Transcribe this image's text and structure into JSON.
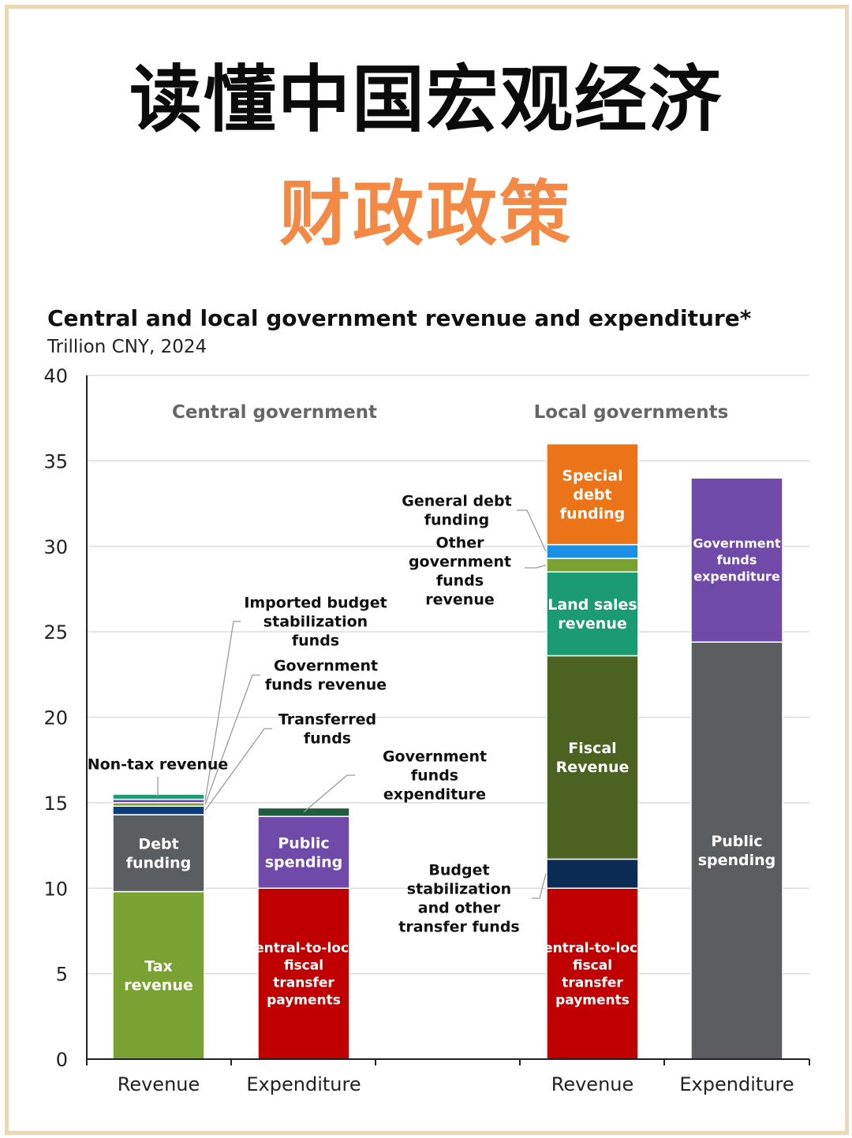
{
  "header": {
    "title": "读懂中国宏观经济",
    "subtitle": "财政政策"
  },
  "colors": {
    "frame": "#ead9b6",
    "title": "#0b0b0b",
    "subtitle": "#f28a45"
  },
  "chart_data": {
    "type": "bar",
    "stacked": true,
    "title": "Central and local government revenue and expenditure*",
    "subtitle": "Trillion CNY, 2024",
    "ylim": [
      0,
      40
    ],
    "yticks": [
      "0",
      "5",
      "10",
      "15",
      "20",
      "25",
      "30",
      "35",
      "40"
    ],
    "grid": true,
    "groups": [
      "Central government",
      "Local governments"
    ],
    "categories": [
      "Revenue",
      "Expenditure",
      "Revenue",
      "Expenditure"
    ],
    "bars": [
      {
        "group": "Central government",
        "category": "Revenue",
        "segments": [
          {
            "name": "Tax revenue",
            "label": "Tax revenue",
            "value": 9.8,
            "color": "#7aa233"
          },
          {
            "name": "Debt funding",
            "label": "Debt funding",
            "value": 4.5,
            "color": "#5a5e61"
          },
          {
            "name": "Transferred funds",
            "value": 0.5,
            "color": "#0a3d7a"
          },
          {
            "name": "Government funds revenue",
            "value": 0.2,
            "color": "#7aa233"
          },
          {
            "name": "Imported budget stabilization funds",
            "value": 0.2,
            "color": "#6f4aa8"
          },
          {
            "name": "Non-tax revenue",
            "value": 0.3,
            "color": "#1a9b72"
          }
        ]
      },
      {
        "group": "Central government",
        "category": "Expenditure",
        "segments": [
          {
            "name": "Central-to-local fiscal transfer payments",
            "label": "Central-to-local fiscal transfer payments",
            "value": 10.0,
            "color": "#c00000"
          },
          {
            "name": "Public spending",
            "label": "Public spending",
            "value": 4.2,
            "color": "#6f4aa8"
          },
          {
            "name": "Government funds expenditure",
            "value": 0.5,
            "color": "#1e5e3e"
          }
        ]
      },
      {
        "group": "Local governments",
        "category": "Revenue",
        "segments": [
          {
            "name": "Central-to-local fiscal transfer payments",
            "label": "Central-to-local fiscal transfer payments",
            "value": 10.0,
            "color": "#c00000"
          },
          {
            "name": "Budget stabilization and other transfer funds",
            "value": 1.7,
            "color": "#0b2b55"
          },
          {
            "name": "Fiscal Revenue",
            "label": "Fiscal Revenue",
            "value": 11.9,
            "color": "#4c6220"
          },
          {
            "name": "Land sales revenue",
            "label": "Land sales revenue",
            "value": 4.9,
            "color": "#1a9b72"
          },
          {
            "name": "Other government funds revenue",
            "value": 0.8,
            "color": "#7aa233"
          },
          {
            "name": "General debt funding",
            "value": 0.8,
            "color": "#1b8fe3"
          },
          {
            "name": "Special debt funding",
            "label": "Special debt funding",
            "value": 5.9,
            "color": "#ea7417"
          }
        ]
      },
      {
        "group": "Local governments",
        "category": "Expenditure",
        "segments": [
          {
            "name": "Public spending",
            "label": "Public spending",
            "value": 24.4,
            "color": "#5a5e61"
          },
          {
            "name": "Government funds expenditure",
            "label": "Government funds expenditure",
            "value": 9.6,
            "color": "#6f4aa8"
          }
        ]
      }
    ],
    "annotations": [
      "Imported budget stabilization funds",
      "Government funds revenue",
      "Transferred funds",
      "Non-tax revenue",
      "Government funds expenditure",
      "General debt funding",
      "Other government funds revenue",
      "Budget stabilization and other transfer funds"
    ]
  }
}
